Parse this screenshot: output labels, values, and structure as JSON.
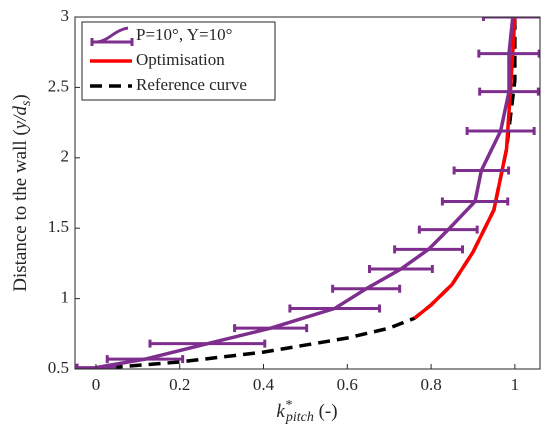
{
  "chart_data": {
    "type": "line",
    "xlabel": [
      "k",
      "*",
      "pitch",
      " (-)"
    ],
    "ylabel": [
      "Distance to the wall (",
      "y/d",
      "s",
      ")"
    ],
    "xlim": [
      -0.05,
      1.06
    ],
    "xticks": [
      0,
      0.2,
      0.4,
      0.6,
      0.8,
      1
    ],
    "ylim": [
      0.5,
      3
    ],
    "yticks": [
      0.5,
      1,
      1.5,
      2,
      2.5,
      3
    ],
    "legend": "upper left",
    "series": [
      {
        "name": "P=10°, Y=10°",
        "color": "#7e2f8e",
        "style": "solid",
        "x": [
          0.0,
          0.117,
          0.266,
          0.417,
          0.57,
          0.645,
          0.728,
          0.794,
          0.841,
          0.905,
          0.92,
          0.966,
          0.986,
          0.986,
          0.995
        ],
        "xerr": [
          0.045,
          0.09,
          0.137,
          0.086,
          0.107,
          0.08,
          0.075,
          0.081,
          0.069,
          0.078,
          0.065,
          0.08,
          0.07,
          0.072,
          0.07
        ],
        "y": [
          0.51,
          0.57,
          0.68,
          0.79,
          0.93,
          1.07,
          1.21,
          1.35,
          1.49,
          1.69,
          1.91,
          2.19,
          2.47,
          2.74,
          3.0
        ]
      },
      {
        "name": "Optimisation",
        "color": "#ff0000",
        "style": "solid",
        "x": [
          0.76,
          0.8,
          0.85,
          0.9,
          0.95,
          0.98,
          0.99,
          1.0
        ],
        "y": [
          0.86,
          0.955,
          1.1,
          1.33,
          1.63,
          2.06,
          2.5,
          3.0
        ]
      },
      {
        "name": "Reference curve",
        "color": "#000000",
        "style": "dashed",
        "x": [
          -0.01,
          0.2,
          0.4,
          0.6,
          0.7,
          0.76,
          0.8,
          0.85,
          0.9,
          0.95,
          0.98,
          1.0,
          1.0
        ],
        "y": [
          0.5,
          0.55,
          0.62,
          0.72,
          0.79,
          0.86,
          0.955,
          1.1,
          1.33,
          1.63,
          2.06,
          2.55,
          3.0
        ]
      }
    ]
  }
}
